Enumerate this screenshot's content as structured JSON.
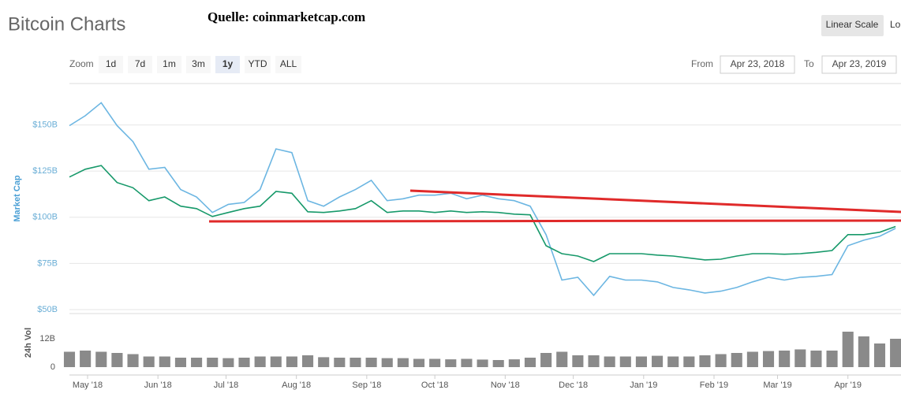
{
  "chart_data": {
    "type": "line",
    "title": "Bitcoin Charts",
    "ylabel": "Market Cap",
    "y2label": "24h Vol",
    "x": [
      "2018-04-23",
      "2018-04-30",
      "2018-05-07",
      "2018-05-14",
      "2018-05-21",
      "2018-05-28",
      "2018-06-04",
      "2018-06-11",
      "2018-06-18",
      "2018-06-25",
      "2018-07-02",
      "2018-07-09",
      "2018-07-16",
      "2018-07-23",
      "2018-07-30",
      "2018-08-06",
      "2018-08-13",
      "2018-08-20",
      "2018-08-27",
      "2018-09-03",
      "2018-09-10",
      "2018-09-17",
      "2018-09-24",
      "2018-10-01",
      "2018-10-08",
      "2018-10-15",
      "2018-10-22",
      "2018-10-29",
      "2018-11-05",
      "2018-11-12",
      "2018-11-19",
      "2018-11-26",
      "2018-12-03",
      "2018-12-10",
      "2018-12-17",
      "2018-12-24",
      "2018-12-31",
      "2019-01-07",
      "2019-01-14",
      "2019-01-21",
      "2019-01-28",
      "2019-02-04",
      "2019-02-11",
      "2019-02-18",
      "2019-02-25",
      "2019-03-04",
      "2019-03-11",
      "2019-03-18",
      "2019-03-25",
      "2019-04-01",
      "2019-04-08",
      "2019-04-15",
      "2019-04-22"
    ],
    "series": [
      {
        "color": "#6cb6e2",
        "values": [
          149.6,
          155,
          162,
          149.6,
          141,
          126,
          127,
          115,
          111,
          102.6,
          107,
          108,
          115,
          137,
          135,
          109,
          106,
          111,
          115,
          120,
          109,
          110,
          112,
          112,
          113,
          110,
          112,
          110,
          109,
          106,
          90.6,
          66,
          67.5,
          57.7,
          68,
          66,
          66,
          65,
          62,
          60.7,
          59,
          60,
          62,
          65,
          67.5,
          66,
          67.5,
          68,
          69,
          84.6,
          87.6,
          89.7,
          94
        ]
      },
      {
        "color": "#17996a",
        "values": [
          121.8,
          126,
          128,
          118.8,
          116,
          109,
          111,
          106,
          104.7,
          100.4,
          102.6,
          104.7,
          106,
          114,
          113,
          103,
          102.6,
          103.4,
          104.7,
          109,
          102.6,
          103.4,
          103.4,
          102.6,
          103.4,
          102.6,
          103,
          102.6,
          101.7,
          101.3,
          84.6,
          80.3,
          79,
          76,
          80.3,
          80.3,
          80.3,
          79.5,
          79,
          78,
          76.9,
          77.3,
          79,
          80.3,
          80.3,
          80,
          80.3,
          81,
          82,
          90.6,
          90.6,
          91.9,
          95
        ]
      },
      {
        "type": "bar",
        "axis": "y2",
        "color": "#8a8a8a",
        "values": [
          6.5,
          7,
          6.5,
          6,
          5.5,
          4.5,
          4.5,
          4,
          4,
          4,
          3.8,
          4,
          4.5,
          4.5,
          4.5,
          5,
          4.2,
          4,
          4,
          4,
          3.8,
          3.8,
          3.5,
          3.5,
          3.3,
          3.5,
          3.2,
          3,
          3.3,
          4,
          6,
          6.5,
          5,
          5,
          4.5,
          4.5,
          4.5,
          4.8,
          4.5,
          4.5,
          5,
          5.5,
          6,
          6.5,
          6.8,
          7,
          7.5,
          7,
          7,
          15,
          13,
          10,
          12
        ]
      }
    ],
    "xlim": [
      "2018-04-23",
      "2019-04-23"
    ],
    "xticks": [
      {
        "value": "2018-05-01",
        "label": "May '18"
      },
      {
        "value": "2018-06-01",
        "label": "Jun '18"
      },
      {
        "value": "2018-07-01",
        "label": "Jul '18"
      },
      {
        "value": "2018-08-01",
        "label": "Aug '18"
      },
      {
        "value": "2018-09-01",
        "label": "Sep '18"
      },
      {
        "value": "2018-10-01",
        "label": "Oct '18"
      },
      {
        "value": "2018-11-01",
        "label": "Nov '18"
      },
      {
        "value": "2018-12-01",
        "label": "Dec '18"
      },
      {
        "value": "2019-01-01",
        "label": "Jan '19"
      },
      {
        "value": "2019-02-01",
        "label": "Feb '19"
      },
      {
        "value": "2019-03-01",
        "label": "Mar '19"
      },
      {
        "value": "2019-04-01",
        "label": "Apr '19"
      }
    ],
    "ylim": [
      50,
      172
    ],
    "yticks": [
      {
        "value": 50,
        "label": "$50B"
      },
      {
        "value": 75,
        "label": "$75B"
      },
      {
        "value": 100,
        "label": "$100B"
      },
      {
        "value": 125,
        "label": "$125B"
      },
      {
        "value": 150,
        "label": "$150B"
      }
    ],
    "y2lim": [
      0,
      22
    ],
    "y2ticks": [
      0,
      {
        "value": 12,
        "label": "12B"
      }
    ],
    "grid": true
  },
  "source": "Quelle: coinmarketcap.com",
  "controls": {
    "scale": "Linear Scale",
    "scale_next": "Lo",
    "zoom": "Zoom",
    "zoom_buttons": [
      "1d",
      "7d",
      "1m",
      "3m",
      "1y",
      "YTD",
      "ALL"
    ],
    "zoom_active": "1y",
    "from": "From",
    "from_date": "Apr 23, 2018",
    "to": "To",
    "to_date": "Apr 23, 2019"
  }
}
